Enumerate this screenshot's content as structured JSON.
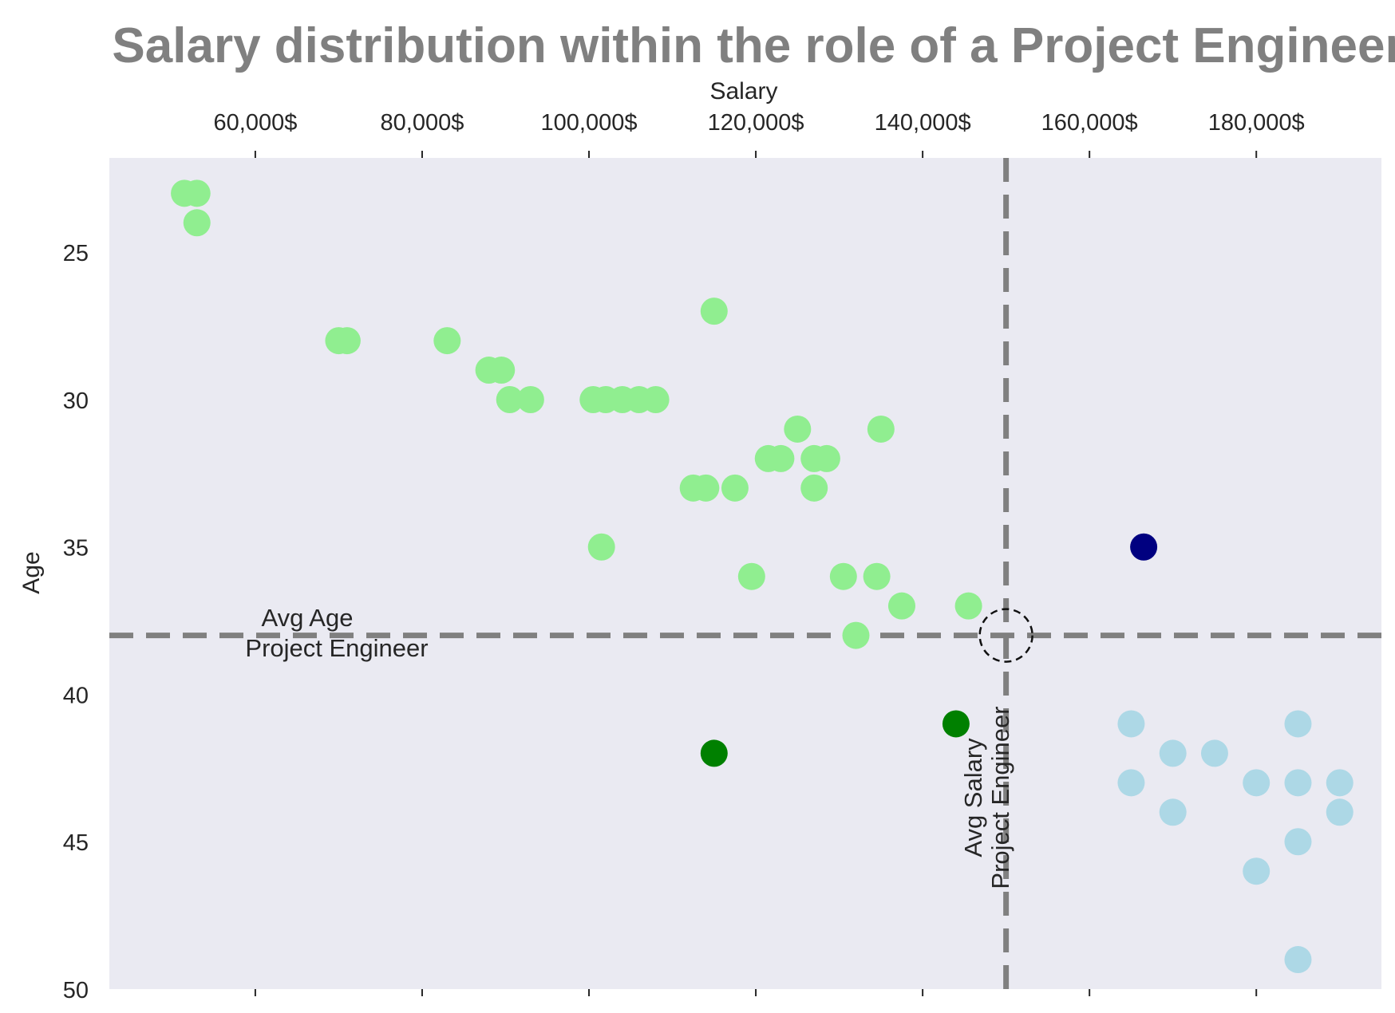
{
  "chart_data": {
    "type": "scatter",
    "title": "Salary distribution within the role of a Project Engineer",
    "xlabel": "Salary",
    "ylabel": "Age",
    "x_axis_position": "top",
    "y_axis_inverted": true,
    "xlim": [
      42500,
      195000
    ],
    "ylim": [
      50,
      21.8
    ],
    "x_ticks": [
      60000,
      80000,
      100000,
      120000,
      140000,
      160000,
      180000
    ],
    "x_tick_labels": [
      "60,000$",
      "80,000$",
      "100,000$",
      "120,000$",
      "140,000$",
      "160,000$",
      "180,000$"
    ],
    "y_ticks": [
      25,
      30,
      35,
      40,
      45,
      50
    ],
    "y_tick_labels": [
      "25",
      "30",
      "35",
      "40",
      "45",
      "50"
    ],
    "grid": false,
    "background_color": "#EAEAF2",
    "avg_salary": 150000,
    "avg_age": 38,
    "avg_lines_color": "#808080",
    "avg_age_label": [
      "Avg Age",
      "Project Engineer"
    ],
    "avg_salary_label": [
      "Avg Salary",
      "Project Engineer"
    ],
    "avg_marker": "dashed-circle",
    "series": [
      {
        "color": "#90EE90",
        "points": [
          [
            51500,
            23
          ],
          [
            53000,
            23
          ],
          [
            53000,
            24
          ],
          [
            115000,
            27
          ],
          [
            70000,
            28
          ],
          [
            71000,
            28
          ],
          [
            83000,
            28
          ],
          [
            88000,
            29
          ],
          [
            89500,
            29
          ],
          [
            90500,
            30
          ],
          [
            93000,
            30
          ],
          [
            100500,
            30
          ],
          [
            102000,
            30
          ],
          [
            104000,
            30
          ],
          [
            106000,
            30
          ],
          [
            108000,
            30
          ],
          [
            125000,
            31
          ],
          [
            135000,
            31
          ],
          [
            121500,
            32
          ],
          [
            123000,
            32
          ],
          [
            127000,
            32
          ],
          [
            128500,
            32
          ],
          [
            112500,
            33
          ],
          [
            114000,
            33
          ],
          [
            117500,
            33
          ],
          [
            127000,
            33
          ],
          [
            101500,
            35
          ],
          [
            119500,
            36
          ],
          [
            130500,
            36
          ],
          [
            134500,
            36
          ],
          [
            137500,
            37
          ],
          [
            145500,
            37
          ],
          [
            132000,
            38
          ]
        ]
      },
      {
        "color": "#ADD8E6",
        "points": [
          [
            165000,
            41
          ],
          [
            185000,
            41
          ],
          [
            170000,
            42
          ],
          [
            175000,
            42
          ],
          [
            165000,
            43
          ],
          [
            180000,
            43
          ],
          [
            185000,
            43
          ],
          [
            190000,
            43
          ],
          [
            170000,
            44
          ],
          [
            190000,
            44
          ],
          [
            185000,
            45
          ],
          [
            180000,
            46
          ],
          [
            185000,
            49
          ]
        ]
      },
      {
        "color": "#008000",
        "points": [
          [
            115000,
            42
          ],
          [
            144000,
            41
          ]
        ]
      },
      {
        "color": "#000080",
        "points": [
          [
            166500,
            35
          ]
        ]
      }
    ]
  }
}
